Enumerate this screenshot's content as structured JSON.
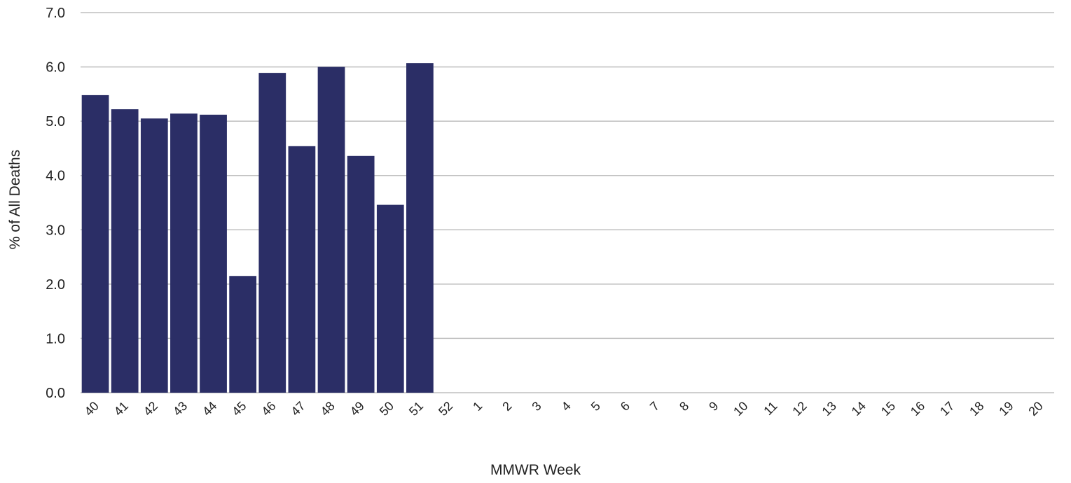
{
  "chart_data": {
    "type": "bar",
    "title": "",
    "xlabel": "MMWR Week",
    "ylabel": "% of All Deaths",
    "ylim": [
      0,
      7
    ],
    "yticks": [
      "0.0",
      "1.0",
      "2.0",
      "3.0",
      "4.0",
      "5.0",
      "6.0",
      "7.0"
    ],
    "grid": true,
    "bar_color": "#2b2e66",
    "gridline_color": "#bfbfbf",
    "categories": [
      "40",
      "41",
      "42",
      "43",
      "44",
      "45",
      "46",
      "47",
      "48",
      "49",
      "50",
      "51",
      "52",
      "1",
      "2",
      "3",
      "4",
      "5",
      "6",
      "7",
      "8",
      "9",
      "10",
      "11",
      "12",
      "13",
      "14",
      "15",
      "16",
      "17",
      "18",
      "19",
      "20"
    ],
    "values": [
      5.48,
      5.22,
      5.05,
      5.14,
      5.12,
      2.15,
      5.89,
      4.54,
      6.0,
      4.36,
      3.46,
      6.07,
      null,
      null,
      null,
      null,
      null,
      null,
      null,
      null,
      null,
      null,
      null,
      null,
      null,
      null,
      null,
      null,
      null,
      null,
      null,
      null,
      null
    ]
  }
}
